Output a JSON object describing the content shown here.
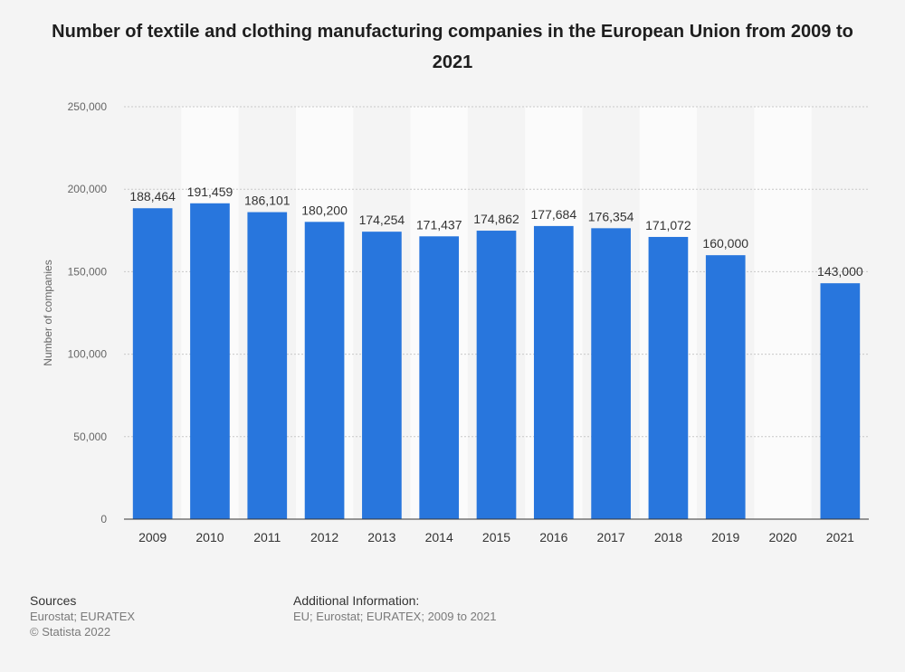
{
  "chart_data": {
    "type": "bar",
    "title": "Number of textile and clothing manufacturing companies in the European Union from 2009 to 2021",
    "xlabel": "",
    "ylabel": "Number of companies",
    "ylim": [
      0,
      250000
    ],
    "yticks": [
      0,
      50000,
      100000,
      150000,
      200000,
      250000
    ],
    "ytick_labels": [
      "0",
      "50,000",
      "100,000",
      "150,000",
      "200,000",
      "250,000"
    ],
    "categories": [
      "2009",
      "2010",
      "2011",
      "2012",
      "2013",
      "2014",
      "2015",
      "2016",
      "2017",
      "2018",
      "2019",
      "2020",
      "2021"
    ],
    "values": [
      188464,
      191459,
      186101,
      180200,
      174254,
      171437,
      174862,
      177684,
      176354,
      171072,
      160000,
      null,
      143000
    ],
    "value_labels": [
      "188,464",
      "191,459",
      "186,101",
      "180,200",
      "174,254",
      "171,437",
      "174,862",
      "177,684",
      "176,354",
      "171,072",
      "160,000",
      "",
      "143,000"
    ],
    "bar_color": "#2876dd",
    "grid": true
  },
  "footer": {
    "sources_heading": "Sources",
    "sources_line1": "Eurostat; EURATEX",
    "sources_line2": "© Statista 2022",
    "info_heading": "Additional Information:",
    "info_line1": "EU; Eurostat; EURATEX; 2009 to 2021"
  }
}
